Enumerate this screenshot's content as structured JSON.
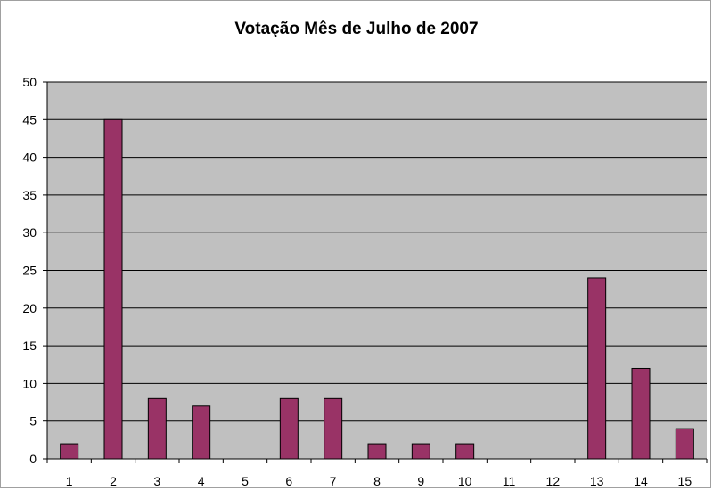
{
  "chart_data": {
    "type": "bar",
    "title": "Votação Mês de Julho de 2007",
    "xlabel": "",
    "ylabel": "",
    "categories": [
      "1",
      "2",
      "3",
      "4",
      "5",
      "6",
      "7",
      "8",
      "9",
      "10",
      "11",
      "12",
      "13",
      "14",
      "15"
    ],
    "values": [
      2,
      45,
      8,
      7,
      0,
      8,
      8,
      2,
      2,
      2,
      0,
      0,
      24,
      12,
      4
    ],
    "ylim": [
      0,
      50
    ],
    "yticks": [
      0,
      5,
      10,
      15,
      20,
      25,
      30,
      35,
      40,
      45,
      50
    ],
    "grid": true,
    "legend": "none",
    "colors": {
      "bar": "#993366",
      "plot_background": "#c0c0c0",
      "gridline": "#000000"
    }
  }
}
